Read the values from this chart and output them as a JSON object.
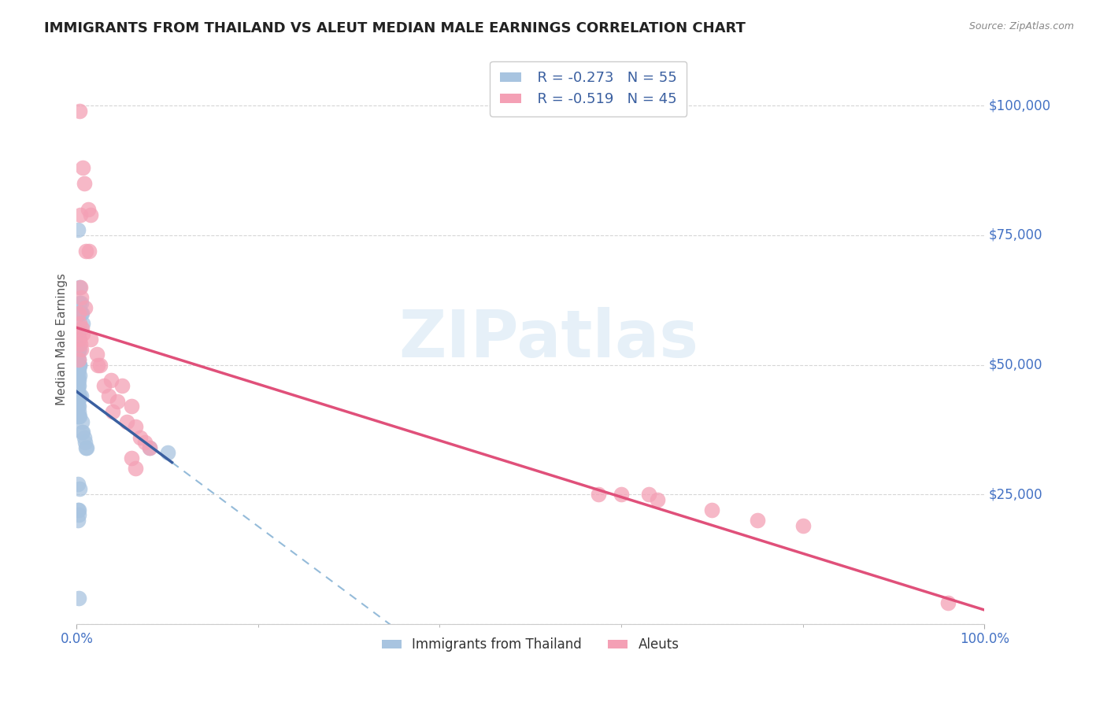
{
  "title": "IMMIGRANTS FROM THAILAND VS ALEUT MEDIAN MALE EARNINGS CORRELATION CHART",
  "source": "Source: ZipAtlas.com",
  "ylabel": "Median Male Earnings",
  "y_ticks": [
    0,
    25000,
    50000,
    75000,
    100000
  ],
  "y_tick_labels": [
    "",
    "$25,000",
    "$50,000",
    "$75,000",
    "$100,000"
  ],
  "x_range": [
    0,
    100
  ],
  "y_range": [
    0,
    110000
  ],
  "legend_r1": "R = -0.273",
  "legend_n1": "N = 55",
  "legend_r2": "R = -0.519",
  "legend_n2": "N = 45",
  "legend_label1": "Immigrants from Thailand",
  "legend_label2": "Aleuts",
  "color_blue": "#a8c4e0",
  "color_pink": "#f4a0b5",
  "trendline_blue": "#3a5fa0",
  "trendline_pink": "#e0507a",
  "trendline_dashed_color": "#7aaad0",
  "watermark": "ZIPatlas",
  "title_color": "#222222",
  "axis_label_color": "#4472c4",
  "thailand_points": [
    [
      0.1,
      76000
    ],
    [
      0.3,
      65000
    ],
    [
      0.35,
      62000
    ],
    [
      0.5,
      62000
    ],
    [
      0.5,
      60000
    ],
    [
      0.6,
      60000
    ],
    [
      0.7,
      58000
    ],
    [
      0.15,
      56000
    ],
    [
      0.2,
      55000
    ],
    [
      0.25,
      54000
    ],
    [
      0.3,
      53000
    ],
    [
      0.1,
      53000
    ],
    [
      0.15,
      52000
    ],
    [
      0.2,
      51000
    ],
    [
      0.1,
      50000
    ],
    [
      0.2,
      50000
    ],
    [
      0.3,
      50000
    ],
    [
      0.1,
      49000
    ],
    [
      0.2,
      49000
    ],
    [
      0.15,
      48000
    ],
    [
      0.35,
      48000
    ],
    [
      0.1,
      47000
    ],
    [
      0.2,
      47000
    ],
    [
      0.15,
      46000
    ],
    [
      0.25,
      46000
    ],
    [
      0.1,
      45000
    ],
    [
      0.2,
      44000
    ],
    [
      0.3,
      44000
    ],
    [
      0.15,
      44000
    ],
    [
      0.1,
      43000
    ],
    [
      0.2,
      42000
    ],
    [
      0.15,
      42000
    ],
    [
      0.25,
      41000
    ],
    [
      0.1,
      40000
    ],
    [
      0.2,
      40000
    ],
    [
      0.3,
      40000
    ],
    [
      0.5,
      44000
    ],
    [
      0.55,
      39000
    ],
    [
      0.6,
      37000
    ],
    [
      0.7,
      37000
    ],
    [
      0.8,
      36000
    ],
    [
      0.9,
      35000
    ],
    [
      1.0,
      34000
    ],
    [
      1.1,
      34000
    ],
    [
      0.1,
      27000
    ],
    [
      0.3,
      26000
    ],
    [
      0.15,
      22000
    ],
    [
      0.2,
      22000
    ],
    [
      0.25,
      21000
    ],
    [
      0.1,
      20000
    ],
    [
      0.2,
      5000
    ],
    [
      8.0,
      34000
    ],
    [
      10.0,
      33000
    ],
    [
      0.1,
      53000
    ],
    [
      0.3,
      50000
    ]
  ],
  "aleut_points": [
    [
      0.3,
      99000
    ],
    [
      0.7,
      88000
    ],
    [
      0.8,
      85000
    ],
    [
      0.4,
      79000
    ],
    [
      1.3,
      80000
    ],
    [
      1.5,
      79000
    ],
    [
      1.0,
      72000
    ],
    [
      1.4,
      72000
    ],
    [
      0.4,
      65000
    ],
    [
      0.5,
      63000
    ],
    [
      0.9,
      61000
    ],
    [
      0.2,
      60000
    ],
    [
      0.3,
      58000
    ],
    [
      0.6,
      57000
    ],
    [
      0.7,
      56000
    ],
    [
      0.3,
      55000
    ],
    [
      1.5,
      55000
    ],
    [
      0.4,
      54000
    ],
    [
      0.5,
      53000
    ],
    [
      2.2,
      52000
    ],
    [
      0.2,
      51000
    ],
    [
      2.3,
      50000
    ],
    [
      2.6,
      50000
    ],
    [
      3.8,
      47000
    ],
    [
      3.0,
      46000
    ],
    [
      5.0,
      46000
    ],
    [
      3.5,
      44000
    ],
    [
      4.5,
      43000
    ],
    [
      6.0,
      42000
    ],
    [
      4.0,
      41000
    ],
    [
      5.5,
      39000
    ],
    [
      6.5,
      38000
    ],
    [
      7.0,
      36000
    ],
    [
      7.5,
      35000
    ],
    [
      8.0,
      34000
    ],
    [
      6.0,
      32000
    ],
    [
      6.5,
      30000
    ],
    [
      57.5,
      25000
    ],
    [
      60.0,
      25000
    ],
    [
      63.0,
      25000
    ],
    [
      64.0,
      24000
    ],
    [
      70.0,
      22000
    ],
    [
      75.0,
      20000
    ],
    [
      80.0,
      19000
    ],
    [
      96.0,
      4000
    ]
  ]
}
